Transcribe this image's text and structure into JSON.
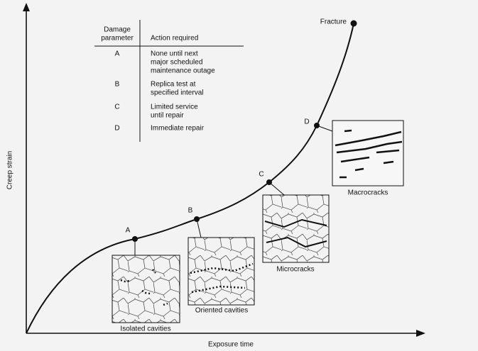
{
  "axes": {
    "y_label": "Creep strain",
    "x_label": "Exposure time"
  },
  "fracture_label": "Fracture",
  "table": {
    "header": {
      "parameter": [
        "Damage",
        "parameter"
      ],
      "action": "Action required"
    },
    "rows": [
      {
        "parameter": "A",
        "action": [
          "None until next",
          "major scheduled",
          "maintenance outage"
        ]
      },
      {
        "parameter": "B",
        "action": [
          "Replica test at",
          "specified interval"
        ]
      },
      {
        "parameter": "C",
        "action": [
          "Limited service",
          "until repair"
        ]
      },
      {
        "parameter": "D",
        "action": [
          "Immediate repair"
        ]
      }
    ]
  },
  "points": [
    "A",
    "B",
    "C",
    "D"
  ],
  "micrographs": [
    "Isolated cavities",
    "Oriented cavities",
    "Microcracks",
    "Macrocracks"
  ]
}
